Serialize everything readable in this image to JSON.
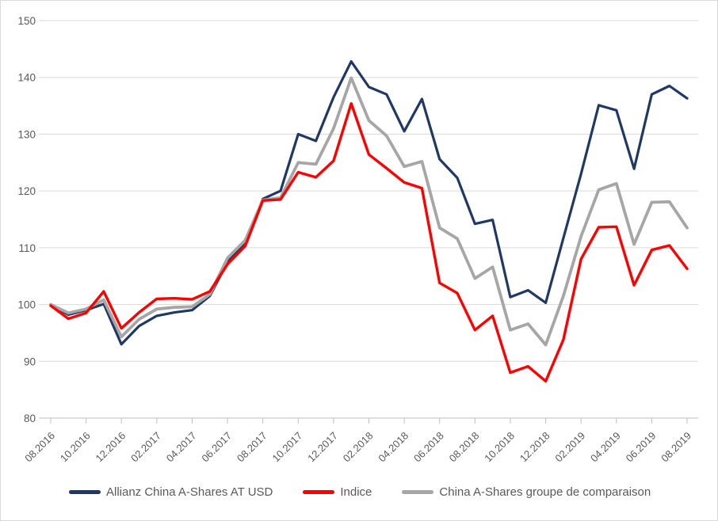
{
  "chart_data": {
    "type": "line",
    "title": "",
    "xlabel": "",
    "ylabel": "",
    "ylim": [
      80,
      150
    ],
    "y_ticks": [
      80,
      90,
      100,
      110,
      120,
      130,
      140,
      150
    ],
    "grid": true,
    "legend_position": "bottom",
    "x_tick_label_interval": 2,
    "x_tick_labels_shown": [
      "08.2016",
      "10.2016",
      "12.2016",
      "02.2017",
      "04.2017",
      "06.2017",
      "08.2017",
      "10.2017",
      "12.2017",
      "02.2018",
      "04.2018",
      "06.2018",
      "08.2018",
      "10.2018",
      "12.2018",
      "02.2019",
      "04.2019",
      "06.2019",
      "08.2019"
    ],
    "months": [
      "08.2016",
      "09.2016",
      "10.2016",
      "11.2016",
      "12.2016",
      "01.2017",
      "02.2017",
      "03.2017",
      "04.2017",
      "05.2017",
      "06.2017",
      "07.2017",
      "08.2017",
      "09.2017",
      "10.2017",
      "11.2017",
      "12.2017",
      "01.2018",
      "02.2018",
      "03.2018",
      "04.2018",
      "05.2018",
      "06.2018",
      "07.2018",
      "08.2018",
      "09.2018",
      "10.2018",
      "11.2018",
      "12.2018",
      "01.2019",
      "02.2019",
      "03.2019",
      "04.2019",
      "05.2019",
      "06.2019",
      "07.2019",
      "08.2019"
    ],
    "series": [
      {
        "name": "Allianz China A-Shares AT USD",
        "color": "#1F3864",
        "values": [
          100,
          98.2,
          99.0,
          100.1,
          93.0,
          96.2,
          98.0,
          98.6,
          99.0,
          101.5,
          107.5,
          110.7,
          118.6,
          120.0,
          130.0,
          128.8,
          136.5,
          142.8,
          138.3,
          137.0,
          130.5,
          136.2,
          125.6,
          122.3,
          114.2,
          114.9,
          101.3,
          102.5,
          100.3,
          111.7,
          123.0,
          135.1,
          134.2,
          123.9,
          137.0,
          138.5,
          136.3
        ]
      },
      {
        "name": "Indice",
        "color": "#FF0000",
        "values": [
          99.8,
          97.5,
          98.5,
          102.3,
          95.8,
          98.6,
          101.0,
          101.1,
          100.9,
          102.3,
          107.1,
          110.3,
          118.3,
          118.5,
          123.3,
          122.4,
          125.3,
          135.4,
          126.4,
          124.0,
          121.5,
          120.5,
          103.8,
          102.0,
          95.5,
          98.0,
          88.0,
          89.1,
          86.5,
          93.8,
          108.0,
          113.6,
          113.7,
          103.4,
          109.6,
          110.4,
          106.3
        ]
      },
      {
        "name": "China A-Shares groupe de comparaison",
        "color": "#A6A6A6",
        "values": [
          100,
          98.5,
          99.2,
          100.8,
          94.3,
          97.4,
          99.2,
          99.5,
          99.6,
          101.8,
          108.2,
          111.3,
          118.4,
          118.8,
          125.0,
          124.7,
          131.0,
          139.9,
          132.4,
          129.7,
          124.3,
          125.2,
          113.5,
          111.6,
          104.6,
          106.6,
          95.5,
          96.6,
          92.9,
          101.5,
          112.0,
          120.2,
          121.3,
          110.6,
          118.0,
          118.1,
          113.5
        ]
      }
    ],
    "colors": {
      "gridline": "#D9D9D9",
      "axis_line": "#BFBFBF",
      "tick": "#BFBFBF",
      "label_text": "#595959"
    }
  }
}
